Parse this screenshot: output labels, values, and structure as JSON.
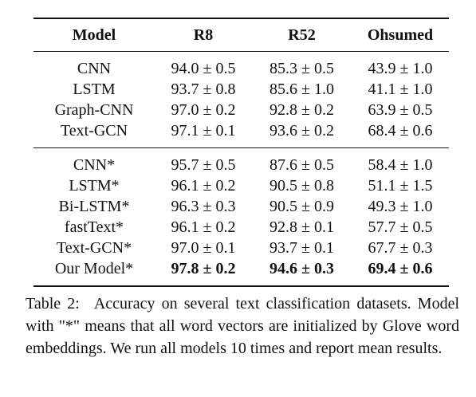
{
  "table": {
    "headers": [
      "Model",
      "R8",
      "R52",
      "Ohsumed"
    ],
    "group1": [
      {
        "model": "CNN",
        "r8": "94.0 ± 0.5",
        "r52": "85.3 ± 0.5",
        "ohsumed": "43.9 ± 1.0"
      },
      {
        "model": "LSTM",
        "r8": "93.7 ± 0.8",
        "r52": "85.6 ± 1.0",
        "ohsumed": "41.1 ± 1.0"
      },
      {
        "model": "Graph-CNN",
        "r8": "97.0 ± 0.2",
        "r52": "92.8 ± 0.2",
        "ohsumed": "63.9 ± 0.5"
      },
      {
        "model": "Text-GCN",
        "r8": "97.1 ± 0.1",
        "r52": "93.6 ± 0.2",
        "ohsumed": "68.4 ± 0.6"
      }
    ],
    "group2": [
      {
        "model": "CNN*",
        "r8": "95.7 ± 0.5",
        "r52": "87.6 ± 0.5",
        "ohsumed": "58.4 ± 1.0"
      },
      {
        "model": "LSTM*",
        "r8": "96.1 ± 0.2",
        "r52": "90.5 ± 0.8",
        "ohsumed": "51.1 ± 1.5"
      },
      {
        "model": "Bi-LSTM*",
        "r8": "96.3 ± 0.3",
        "r52": "90.5 ± 0.9",
        "ohsumed": "49.3 ± 1.0"
      },
      {
        "model": "fastText*",
        "r8": "96.1 ± 0.2",
        "r52": "92.8 ± 0.1",
        "ohsumed": "57.7 ± 0.5"
      },
      {
        "model": "Text-GCN*",
        "r8": "97.0 ± 0.1",
        "r52": "93.7 ± 0.1",
        "ohsumed": "67.7 ± 0.3"
      },
      {
        "model": "Our Model*",
        "r8": "97.8 ± 0.2",
        "r52": "94.6 ± 0.3",
        "ohsumed": "69.4 ± 0.6"
      }
    ]
  },
  "caption": {
    "label": "Table 2:",
    "text": "Accuracy on several text classification datasets. Model with \"*\" means that all word vectors are initialized by Glove word embeddings. We run all models 10 times and report mean results."
  }
}
